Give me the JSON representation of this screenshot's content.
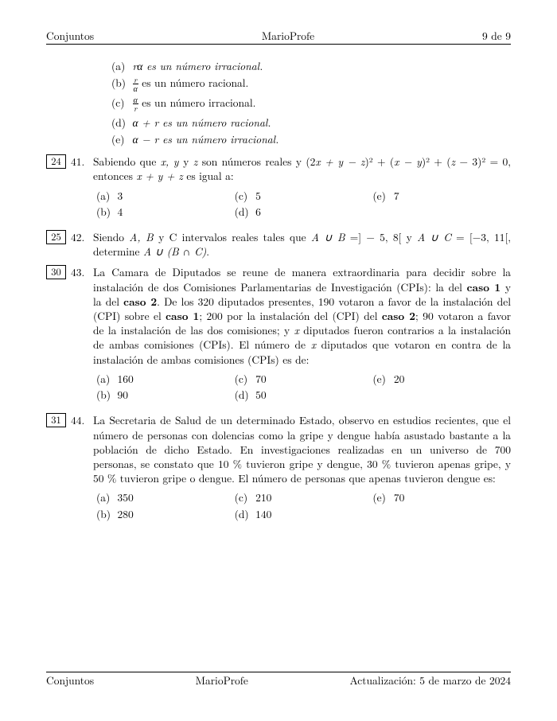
{
  "header": {
    "left": "Conjuntos",
    "center": "MarioProfe",
    "right": "9 de 9"
  },
  "top_options": {
    "a": "rα es un número irracional.",
    "b_pre": "",
    "b_frac_num": "r",
    "b_frac_den": "α",
    "b_post": " es un número racional.",
    "c_pre": "",
    "c_frac_num": "α",
    "c_frac_den": "r",
    "c_post": " es un número irracional.",
    "d": "α + r es un número racional.",
    "e": "α − r es un número irracional."
  },
  "q41": {
    "ref": "24",
    "num": "41.",
    "text1": "Sabiendo que ",
    "text2": " son números reales y (2",
    "text3": ")² + (",
    "text4": ")² + (",
    "text5": " − 3)² = 0, entonces ",
    "text6": " es igual a:",
    "opts": {
      "a": "3",
      "b": "4",
      "c": "5",
      "d": "6",
      "e": "7"
    }
  },
  "q42": {
    "ref": "25",
    "num": "42.",
    "text1": "Siendo ",
    "text2": " intervalos reales tales que ",
    "text3": " =] − 5, 8[ y ",
    "text4": " = [−3, 11[, determine ",
    "text5": "."
  },
  "q43": {
    "ref": "30",
    "num": "43.",
    "text1": "La Camara de Diputados se reune de manera extraordinaria para decidir sobre la instalación de dos Comisiones Parlamentarias de Investigación (CPIs): la del ",
    "bold1": "caso 1",
    "text2": " y la del ",
    "bold2": "caso 2",
    "text3": ". De los 320 diputados presentes, 190 votaron a favor de la instalación del (CPI) sobre el ",
    "bold3": "caso 1",
    "text4": "; 200 por la instalación del (CPI) del ",
    "bold4": "caso 2",
    "text5": "; 90 votaron a favor de la instalación de las dos comisiones; y ",
    "text6": " diputados fueron contrarios a la instalación de ambas comisiones (CPIs). El número de ",
    "text7": " diputados que votaron en contra de la instalación de ambas comisiones (CPIs) es de:",
    "opts": {
      "a": "160",
      "b": "90",
      "c": "70",
      "d": "50",
      "e": "20"
    }
  },
  "q44": {
    "ref": "31",
    "num": "44.",
    "text": "La Secretaria de Salud de un determinado Estado, observo en estudios recientes, que el número de personas con dolencias como la gripe y dengue había asustado bastante a la población de dicho Estado. En investigaciones realizadas en un universo de 700 personas, se constato que 10 % tuvieron gripe y dengue, 30 % tuvieron apenas gripe, y 50 % tuvieron gripe o dengue. El número de personas que apenas tuvieron dengue es:",
    "opts": {
      "a": "350",
      "b": "280",
      "c": "210",
      "d": "140",
      "e": "70"
    }
  },
  "footer": {
    "left": "Conjuntos",
    "center": "MarioProfe",
    "right": "Actualización: 5 de marzo de 2024"
  },
  "labels": {
    "a": "(a)",
    "b": "(b)",
    "c": "(c)",
    "d": "(d)",
    "e": "(e)"
  },
  "vars": {
    "x": "x",
    "y": "y",
    "z": "z",
    "A": "A",
    "B": "B",
    "C": "C",
    "xyz_list": "x, y ",
    "y_word": "y ",
    "AB_list": "A, B ",
    "yC": "y C",
    "AuB": "A ∪ B",
    "AuC": "A ∪ C",
    "AuBnC": "A ∪ (B ∩ C)",
    "xpypz": "x + y + z",
    "xpymz": "x + y − z",
    "xmy": "x − y"
  }
}
